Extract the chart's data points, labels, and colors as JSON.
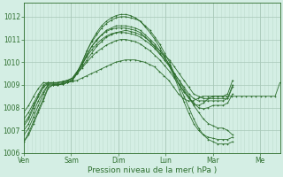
{
  "bg_color": "#d4eee4",
  "grid_color_major": "#a8c8b8",
  "grid_color_minor": "#c0ddd0",
  "line_color": "#2d6e2d",
  "ylim": [
    1006.0,
    1012.6
  ],
  "yticks": [
    1006,
    1007,
    1008,
    1009,
    1010,
    1011,
    1012
  ],
  "xlabel": "Pression niveau de la mer( hPa )",
  "xlabel_fontsize": 6.5,
  "tick_fontsize": 5.5,
  "day_labels": [
    "Ven",
    "Sam",
    "Dim",
    "Lun",
    "Mar",
    "Me"
  ],
  "day_x": [
    0,
    24,
    48,
    72,
    96,
    120
  ],
  "xlim": [
    0,
    130
  ],
  "series": [
    [
      1007.0,
      1007.3,
      1007.8,
      1008.3,
      1008.7,
      1009.0,
      1009.0,
      1009.0,
      1009.05,
      1009.1,
      1009.15,
      1009.2,
      1009.3,
      1009.4,
      1009.5,
      1009.6,
      1009.7,
      1009.8,
      1009.9,
      1010.0,
      1010.05,
      1010.1,
      1010.1,
      1010.1,
      1010.05,
      1010.0,
      1009.9,
      1009.8,
      1009.6,
      1009.4,
      1009.2,
      1008.9,
      1008.6,
      1008.4,
      1008.3,
      1008.3,
      1008.4,
      1008.5,
      1008.5,
      1008.5,
      1008.5,
      1008.5,
      1008.5,
      1008.5,
      1008.5,
      1008.5,
      1008.5,
      1008.5,
      1008.5,
      1008.5,
      1008.5,
      1008.5,
      1008.5,
      1009.1
    ],
    [
      1007.2,
      1007.5,
      1008.0,
      1008.5,
      1008.9,
      1009.1,
      1009.1,
      1009.1,
      1009.15,
      1009.2,
      1009.3,
      1009.5,
      1009.8,
      1010.1,
      1010.4,
      1010.7,
      1010.9,
      1011.1,
      1011.2,
      1011.3,
      1011.35,
      1011.4,
      1011.35,
      1011.3,
      1011.2,
      1011.1,
      1010.9,
      1010.7,
      1010.5,
      1010.3,
      1010.1,
      1009.8,
      1009.5,
      1009.2,
      1008.9,
      1008.6,
      1008.5,
      1008.4,
      1008.4,
      1008.4,
      1008.4,
      1008.4,
      1008.4,
      1009.0
    ],
    [
      1006.8,
      1007.1,
      1007.6,
      1008.1,
      1008.6,
      1009.0,
      1009.0,
      1009.0,
      1009.05,
      1009.1,
      1009.2,
      1009.5,
      1009.9,
      1010.3,
      1010.7,
      1011.0,
      1011.2,
      1011.4,
      1011.5,
      1011.6,
      1011.6,
      1011.6,
      1011.55,
      1011.5,
      1011.4,
      1011.2,
      1011.0,
      1010.8,
      1010.5,
      1010.2,
      1009.9,
      1009.5,
      1009.2,
      1008.8,
      1008.5,
      1008.1,
      1007.8,
      1007.5,
      1007.3,
      1007.2,
      1007.1,
      1007.1,
      1007.0,
      1006.8
    ],
    [
      1006.5,
      1006.9,
      1007.4,
      1007.9,
      1008.4,
      1008.9,
      1009.0,
      1009.0,
      1009.05,
      1009.1,
      1009.2,
      1009.55,
      1010.0,
      1010.5,
      1010.9,
      1011.2,
      1011.5,
      1011.7,
      1011.85,
      1011.95,
      1012.0,
      1012.0,
      1011.95,
      1011.9,
      1011.8,
      1011.6,
      1011.4,
      1011.1,
      1010.8,
      1010.4,
      1010.0,
      1009.5,
      1009.0,
      1008.5,
      1008.0,
      1007.5,
      1007.1,
      1006.8,
      1006.6,
      1006.5,
      1006.4,
      1006.4,
      1006.4,
      1006.5
    ],
    [
      1007.5,
      1007.8,
      1008.2,
      1008.6,
      1009.0,
      1009.1,
      1009.1,
      1009.1,
      1009.15,
      1009.2,
      1009.3,
      1009.6,
      1009.9,
      1010.25,
      1010.55,
      1010.8,
      1011.0,
      1011.15,
      1011.25,
      1011.3,
      1011.3,
      1011.3,
      1011.25,
      1011.2,
      1011.1,
      1010.95,
      1010.8,
      1010.6,
      1010.35,
      1010.1,
      1009.85,
      1009.5,
      1009.2,
      1008.9,
      1008.6,
      1008.4,
      1008.3,
      1008.3,
      1008.3,
      1008.3,
      1008.3,
      1008.3,
      1008.4,
      1008.9
    ],
    [
      1007.3,
      1007.6,
      1008.1,
      1008.5,
      1008.9,
      1009.05,
      1009.05,
      1009.05,
      1009.1,
      1009.15,
      1009.25,
      1009.5,
      1009.75,
      1010.0,
      1010.25,
      1010.45,
      1010.6,
      1010.75,
      1010.85,
      1010.95,
      1011.0,
      1011.0,
      1010.95,
      1010.9,
      1010.8,
      1010.65,
      1010.5,
      1010.3,
      1010.1,
      1009.85,
      1009.6,
      1009.3,
      1009.0,
      1008.7,
      1008.45,
      1008.2,
      1008.0,
      1007.95,
      1008.0,
      1008.1,
      1008.1,
      1008.1,
      1008.2,
      1008.6
    ],
    [
      1007.8,
      1008.1,
      1008.5,
      1008.85,
      1009.1,
      1009.1,
      1009.1,
      1009.1,
      1009.15,
      1009.2,
      1009.3,
      1009.6,
      1009.95,
      1010.35,
      1010.7,
      1010.95,
      1011.2,
      1011.35,
      1011.45,
      1011.5,
      1011.5,
      1011.5,
      1011.45,
      1011.4,
      1011.3,
      1011.1,
      1010.9,
      1010.65,
      1010.4,
      1010.1,
      1009.8,
      1009.4,
      1009.05,
      1008.7,
      1008.4,
      1008.15,
      1008.1,
      1008.2,
      1008.4,
      1008.5,
      1008.5,
      1008.5,
      1008.6,
      1009.2
    ],
    [
      1006.5,
      1006.8,
      1007.3,
      1007.8,
      1008.3,
      1008.85,
      1009.0,
      1009.0,
      1009.05,
      1009.1,
      1009.2,
      1009.55,
      1010.0,
      1010.5,
      1010.95,
      1011.3,
      1011.6,
      1011.8,
      1011.95,
      1012.05,
      1012.1,
      1012.1,
      1012.05,
      1011.95,
      1011.8,
      1011.55,
      1011.3,
      1011.0,
      1010.65,
      1010.25,
      1009.85,
      1009.35,
      1008.8,
      1008.25,
      1007.75,
      1007.3,
      1007.0,
      1006.8,
      1006.7,
      1006.65,
      1006.6,
      1006.6,
      1006.6,
      1006.7
    ]
  ]
}
